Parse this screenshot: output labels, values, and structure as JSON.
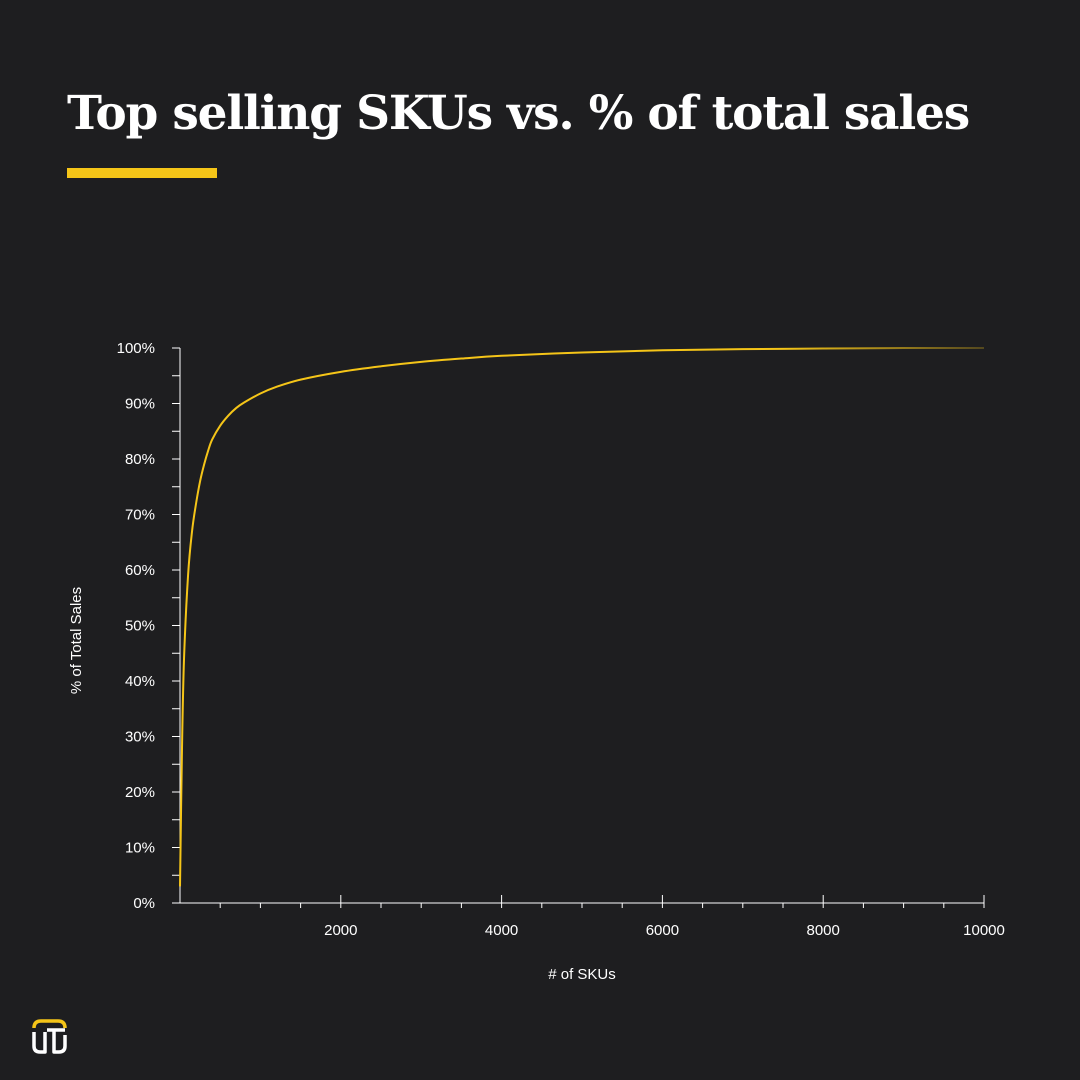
{
  "page": {
    "background": "#1e1e20",
    "accent": "#f5c518",
    "title": "Top selling SKUs vs. % of total sales"
  },
  "logo": {
    "icon": "brand-logo-icon",
    "text": "UTJ"
  },
  "chart_data": {
    "type": "line",
    "title": "",
    "xlabel": "# of SKUs",
    "ylabel": "% of Total Sales",
    "xlim": [
      0,
      10000
    ],
    "ylim": [
      0,
      100
    ],
    "x_major_ticks": [
      2000,
      4000,
      6000,
      8000,
      10000
    ],
    "x_major_labels": [
      "2000",
      "4000",
      "6000",
      "8000",
      "10000"
    ],
    "x_minor_step": 500,
    "y_major_ticks": [
      0,
      10,
      20,
      30,
      40,
      50,
      60,
      70,
      80,
      90,
      100
    ],
    "y_major_labels": [
      "0%",
      "10%",
      "20%",
      "30%",
      "40%",
      "50%",
      "60%",
      "70%",
      "80%",
      "90%",
      "100%"
    ],
    "y_minor_step": 5,
    "grid": false,
    "line_color": "#f5c518",
    "series": [
      {
        "x": [
          0,
          25,
          50,
          100,
          150,
          200,
          250,
          300,
          350,
          400,
          500,
          600,
          700,
          800,
          1000,
          1200,
          1500,
          2000,
          2500,
          3000,
          3500,
          4000,
          5000,
          6000,
          7000,
          8000,
          9000,
          10000
        ],
        "y": [
          3,
          28,
          44,
          59,
          67,
          72,
          76,
          79,
          81.5,
          83.5,
          86,
          87.8,
          89.2,
          90.2,
          91.8,
          93,
          94.3,
          95.7,
          96.7,
          97.5,
          98.1,
          98.6,
          99.2,
          99.6,
          99.8,
          99.9,
          100,
          100
        ]
      }
    ]
  }
}
